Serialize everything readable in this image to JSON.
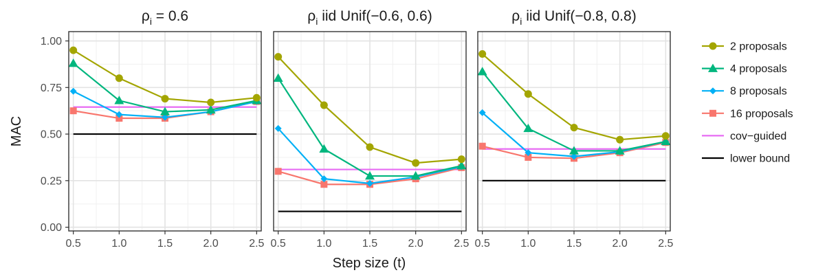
{
  "chart_data": {
    "type": "line",
    "xlabel": "Step size (t)",
    "ylabel": "MAC",
    "xlim": [
      0.45,
      2.55
    ],
    "ylim": [
      -0.02,
      1.05
    ],
    "x_ticks": [
      "0.5",
      "1.0",
      "1.5",
      "2.0",
      "2.5"
    ],
    "y_ticks": [
      "0.00",
      "0.25",
      "0.50",
      "0.75",
      "1.00"
    ],
    "grid": true,
    "legend_position": "right",
    "legend": [
      {
        "name": "2 proposals",
        "color": "#a3a500",
        "marker": "circle"
      },
      {
        "name": "4 proposals",
        "color": "#00b67e",
        "marker": "triangle"
      },
      {
        "name": "8 proposals",
        "color": "#00b0f6",
        "marker": "diamond"
      },
      {
        "name": "16 proposals",
        "color": "#f8766d",
        "marker": "square"
      },
      {
        "name": "cov−guided",
        "color": "#e76bf3",
        "marker": "none"
      },
      {
        "name": "lower bound",
        "color": "#000000",
        "marker": "none"
      }
    ],
    "x": [
      0.5,
      1.0,
      1.5,
      2.0,
      2.5
    ],
    "panels": [
      {
        "title_main": "ρ",
        "title_sub": "i",
        "title_rest": " = 0.6",
        "series": [
          {
            "name": "2 proposals",
            "values": [
              0.95,
              0.8,
              0.69,
              0.67,
              0.695
            ]
          },
          {
            "name": "4 proposals",
            "values": [
              0.88,
              0.68,
              0.62,
              0.63,
              0.68
            ]
          },
          {
            "name": "8 proposals",
            "values": [
              0.73,
              0.605,
              0.59,
              0.62,
              0.675
            ]
          },
          {
            "name": "16 proposals",
            "values": [
              0.625,
              0.585,
              0.585,
              0.62,
              0.675
            ]
          }
        ],
        "cov_guided": 0.645,
        "lower_bound": 0.5
      },
      {
        "title_main": "ρ",
        "title_sub": "i",
        "title_rest": " iid Unif(−0.6, 0.6)",
        "series": [
          {
            "name": "2 proposals",
            "values": [
              0.915,
              0.655,
              0.43,
              0.345,
              0.365
            ]
          },
          {
            "name": "4 proposals",
            "values": [
              0.8,
              0.42,
              0.275,
              0.275,
              0.33
            ]
          },
          {
            "name": "8 proposals",
            "values": [
              0.53,
              0.26,
              0.235,
              0.27,
              0.325
            ]
          },
          {
            "name": "16 proposals",
            "values": [
              0.3,
              0.23,
              0.23,
              0.26,
              0.32
            ]
          }
        ],
        "cov_guided": 0.31,
        "lower_bound": 0.085
      },
      {
        "title_main": "ρ",
        "title_sub": "i",
        "title_rest": " iid Unif(−0.8, 0.8)",
        "series": [
          {
            "name": "2 proposals",
            "values": [
              0.93,
              0.715,
              0.535,
              0.47,
              0.49
            ]
          },
          {
            "name": "4 proposals",
            "values": [
              0.835,
              0.53,
              0.41,
              0.41,
              0.46
            ]
          },
          {
            "name": "8 proposals",
            "values": [
              0.615,
              0.4,
              0.38,
              0.405,
              0.46
            ]
          },
          {
            "name": "16 proposals",
            "values": [
              0.435,
              0.375,
              0.37,
              0.4,
              0.455
            ]
          }
        ],
        "cov_guided": 0.42,
        "lower_bound": 0.25
      }
    ]
  }
}
